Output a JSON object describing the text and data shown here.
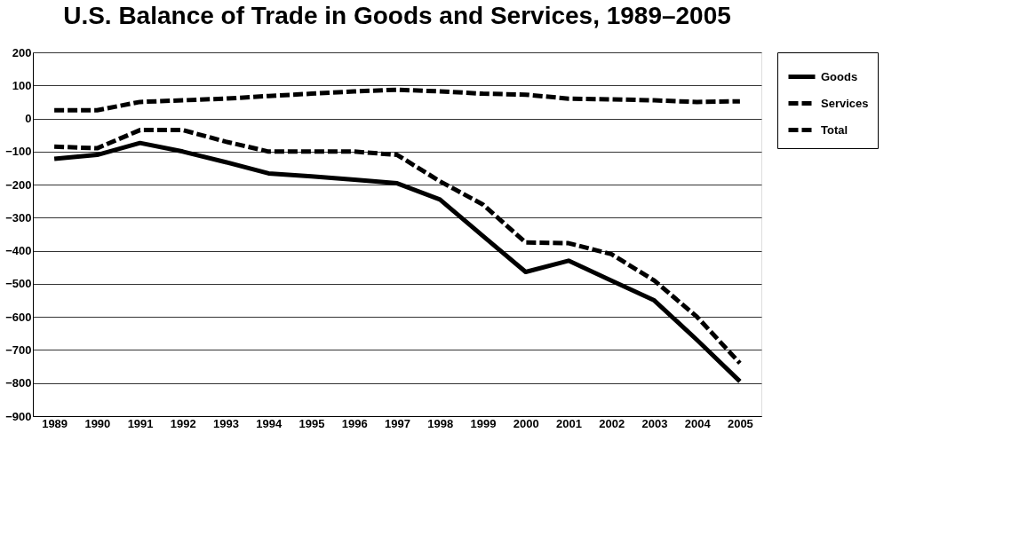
{
  "chart_data": {
    "type": "line",
    "title": "U.S. Balance of Trade in Goods and Services, 1989–2005",
    "categories": [
      "1989",
      "1990",
      "1991",
      "1992",
      "1993",
      "1994",
      "1995",
      "1996",
      "1997",
      "1998",
      "1999",
      "2000",
      "2001",
      "2002",
      "2003",
      "2004",
      "2005"
    ],
    "series": [
      {
        "name": "Goods",
        "color": "#000000",
        "line_style": "solid",
        "values": [
          -122,
          -110,
          -74,
          -100,
          -132,
          -166,
          -175,
          -185,
          -196,
          -245,
          -355,
          -464,
          -430,
          -490,
          -550,
          -670,
          -795
        ]
      },
      {
        "name": "Services",
        "color": "#000000",
        "line_style": "dashed",
        "values": [
          25,
          25,
          50,
          55,
          60,
          68,
          75,
          82,
          87,
          82,
          75,
          72,
          60,
          58,
          55,
          50,
          52
        ]
      },
      {
        "name": "Total",
        "color": "#000000",
        "line_style": "dashed",
        "values": [
          -85,
          -90,
          -35,
          -35,
          -70,
          -100,
          -100,
          -100,
          -110,
          -190,
          -260,
          -375,
          -377,
          -410,
          -490,
          -600,
          -740
        ]
      }
    ],
    "ylim": [
      -900,
      200
    ],
    "yticks": [
      -900,
      -800,
      -700,
      -600,
      -500,
      -400,
      -300,
      -200,
      -100,
      0,
      100,
      200
    ],
    "grid": "y",
    "legend": "right",
    "marker": "none"
  }
}
